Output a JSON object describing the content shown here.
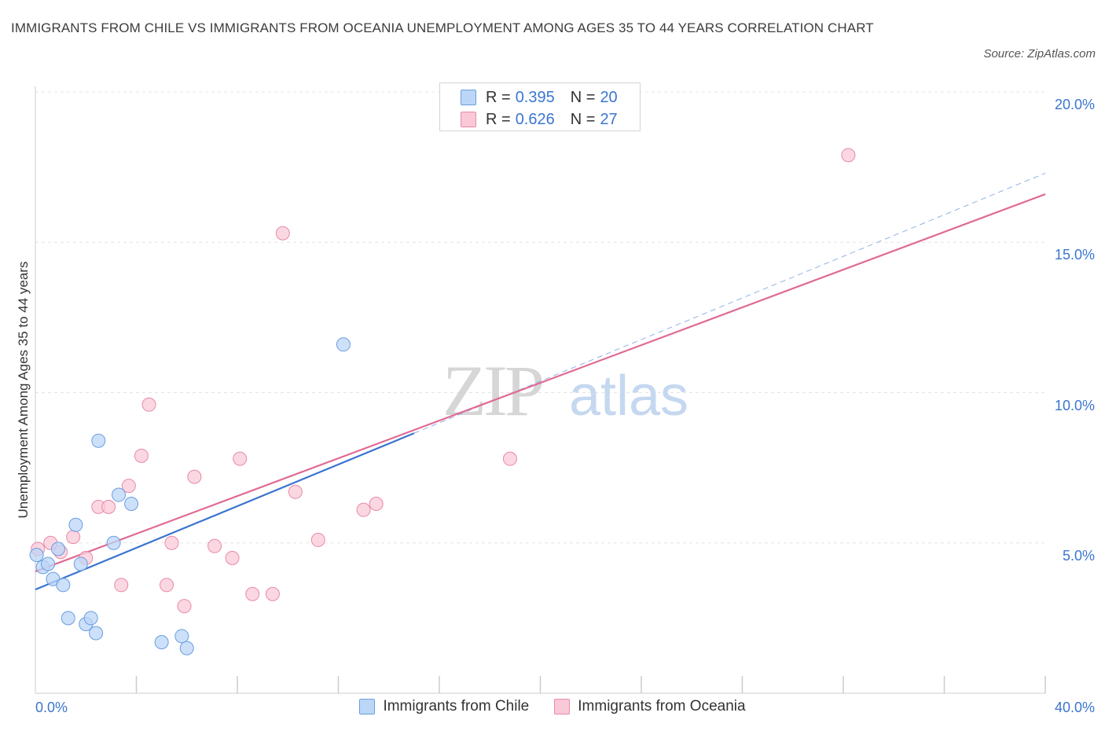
{
  "header": {
    "title": "IMMIGRANTS FROM CHILE VS IMMIGRANTS FROM OCEANIA UNEMPLOYMENT AMONG AGES 35 TO 44 YEARS CORRELATION CHART",
    "source": "Source: ZipAtlas.com"
  },
  "watermark": {
    "zip": "ZIP",
    "atlas": "atlas"
  },
  "legend_top": {
    "rows": [
      {
        "r_label": "R =",
        "r_value": "0.395",
        "n_label": "N =",
        "n_value": "20"
      },
      {
        "r_label": "R =",
        "r_value": "0.626",
        "n_label": "N =",
        "n_value": "27"
      }
    ]
  },
  "legend_bottom": {
    "chile": "Immigrants from Chile",
    "oceania": "Immigrants from Oceania"
  },
  "colors": {
    "chile_fill": "#bcd6f7",
    "chile_stroke": "#6a9de0",
    "chile_line": "#3a74d0",
    "oceania_fill": "#f9c9d8",
    "oceania_stroke": "#e88aa8",
    "oceania_line": "#e06a94",
    "axis_label": "#3b76d0",
    "grid": "#e4e4e4"
  },
  "chart_data": {
    "type": "scatter",
    "title": "IMMIGRANTS FROM CHILE VS IMMIGRANTS FROM OCEANIA UNEMPLOYMENT AMONG AGES 35 TO 44 YEARS CORRELATION CHART",
    "xlabel": "",
    "ylabel": "Unemployment Among Ages 35 to 44 years",
    "xlim": [
      0,
      40
    ],
    "ylim": [
      0,
      20.5
    ],
    "x_tick_labels": [
      {
        "value": 0,
        "label": "0.0%"
      },
      {
        "value": 40,
        "label": "40.0%"
      }
    ],
    "y_tick_labels": [
      {
        "value": 5,
        "label": "5.0%"
      },
      {
        "value": 10,
        "label": "10.0%"
      },
      {
        "value": 15,
        "label": "15.0%"
      },
      {
        "value": 20,
        "label": "20.0%"
      }
    ],
    "x_minor_ticks": [
      4,
      8,
      12,
      16,
      20,
      24,
      28,
      32,
      36,
      40
    ],
    "grid": true,
    "series": [
      {
        "name": "Immigrants from Chile",
        "r": 0.395,
        "n": 20,
        "points": [
          {
            "x": 0.05,
            "y": 4.6
          },
          {
            "x": 0.3,
            "y": 4.2
          },
          {
            "x": 0.5,
            "y": 4.3
          },
          {
            "x": 0.7,
            "y": 3.8
          },
          {
            "x": 0.9,
            "y": 4.8
          },
          {
            "x": 1.1,
            "y": 3.6
          },
          {
            "x": 1.3,
            "y": 2.5
          },
          {
            "x": 1.6,
            "y": 5.6
          },
          {
            "x": 1.8,
            "y": 4.3
          },
          {
            "x": 2.0,
            "y": 2.3
          },
          {
            "x": 2.2,
            "y": 2.5
          },
          {
            "x": 2.4,
            "y": 2.0
          },
          {
            "x": 2.5,
            "y": 8.4
          },
          {
            "x": 3.1,
            "y": 5.0
          },
          {
            "x": 3.3,
            "y": 6.6
          },
          {
            "x": 3.8,
            "y": 6.3
          },
          {
            "x": 5.0,
            "y": 1.7
          },
          {
            "x": 5.8,
            "y": 1.9
          },
          {
            "x": 6.0,
            "y": 1.5
          },
          {
            "x": 12.2,
            "y": 11.6
          }
        ],
        "trend": {
          "x0": 0,
          "y0": 3.45,
          "x1": 15.0,
          "y1": 8.65
        },
        "trend_extension": {
          "x0": 15.0,
          "y0": 8.65,
          "x1": 40.0,
          "y1": 17.3
        }
      },
      {
        "name": "Immigrants from Oceania",
        "r": 0.626,
        "n": 27,
        "points": [
          {
            "x": 0.1,
            "y": 4.8
          },
          {
            "x": 0.6,
            "y": 5.0
          },
          {
            "x": 1.0,
            "y": 4.7
          },
          {
            "x": 1.5,
            "y": 5.2
          },
          {
            "x": 2.0,
            "y": 4.5
          },
          {
            "x": 2.5,
            "y": 6.2
          },
          {
            "x": 2.9,
            "y": 6.2
          },
          {
            "x": 3.4,
            "y": 3.6
          },
          {
            "x": 3.7,
            "y": 6.9
          },
          {
            "x": 4.2,
            "y": 7.9
          },
          {
            "x": 4.5,
            "y": 9.6
          },
          {
            "x": 5.2,
            "y": 3.6
          },
          {
            "x": 5.4,
            "y": 5.0
          },
          {
            "x": 5.9,
            "y": 2.9
          },
          {
            "x": 6.3,
            "y": 7.2
          },
          {
            "x": 7.1,
            "y": 4.9
          },
          {
            "x": 7.8,
            "y": 4.5
          },
          {
            "x": 8.1,
            "y": 7.8
          },
          {
            "x": 8.6,
            "y": 3.3
          },
          {
            "x": 9.4,
            "y": 3.3
          },
          {
            "x": 9.8,
            "y": 15.3
          },
          {
            "x": 10.3,
            "y": 6.7
          },
          {
            "x": 11.2,
            "y": 5.1
          },
          {
            "x": 13.0,
            "y": 6.1
          },
          {
            "x": 13.5,
            "y": 6.3
          },
          {
            "x": 18.8,
            "y": 7.8
          },
          {
            "x": 32.2,
            "y": 17.9
          }
        ],
        "trend": {
          "x0": 0,
          "y0": 4.05,
          "x1": 40.0,
          "y1": 16.6
        }
      }
    ]
  }
}
